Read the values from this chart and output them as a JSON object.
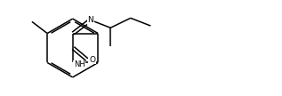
{
  "bg_color": "#ffffff",
  "line_color": "#000000",
  "line_width": 1.1,
  "font_size": 6.5,
  "figsize": [
    3.17,
    1.08
  ],
  "dpi": 100,
  "xlim": [
    0,
    10
  ],
  "ylim": [
    0,
    3.4
  ]
}
